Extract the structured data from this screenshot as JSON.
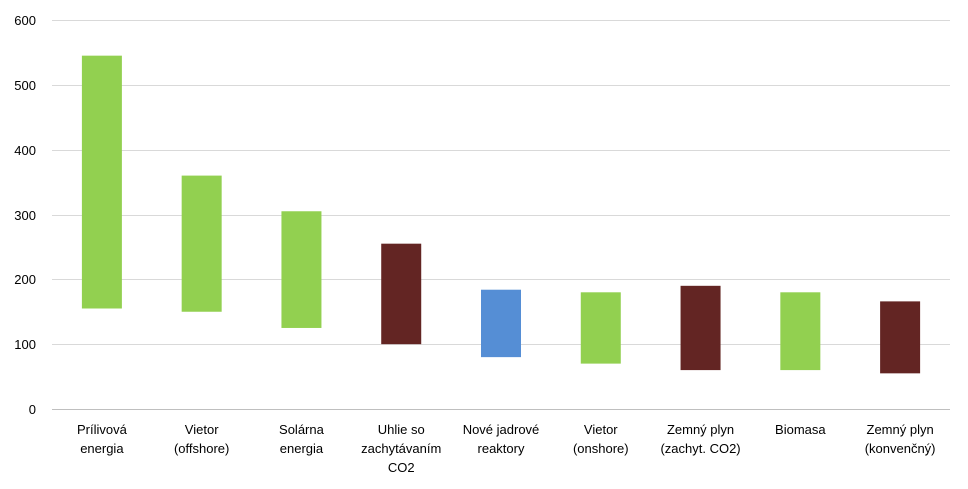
{
  "chart_data": {
    "type": "bar",
    "subtype": "floating-range",
    "title": "",
    "xlabel": "",
    "ylabel": "",
    "ylim": [
      0,
      600
    ],
    "yticks": [
      0,
      100,
      200,
      300,
      400,
      500,
      600
    ],
    "grid": true,
    "legend": "none",
    "categories": [
      [
        "Prílivová",
        "energia"
      ],
      [
        "Vietor",
        "(offshore)"
      ],
      [
        "Solárna",
        "energia"
      ],
      [
        "Uhlie so",
        "zachytávaním",
        "CO2"
      ],
      [
        "Nové jadrové",
        "reaktory"
      ],
      [
        "Vietor",
        "(onshore)"
      ],
      [
        "Zemný plyn",
        "(zachyt. CO2)"
      ],
      [
        "Biomasa"
      ],
      [
        "Zemný plyn",
        "(konvenčný)"
      ]
    ],
    "low": [
      155,
      150,
      125,
      100,
      80,
      70,
      60,
      60,
      55
    ],
    "high": [
      545,
      360,
      305,
      255,
      184,
      180,
      190,
      180,
      166
    ],
    "colors": [
      "#92d050",
      "#92d050",
      "#92d050",
      "#632523",
      "#558ed5",
      "#92d050",
      "#632523",
      "#92d050",
      "#632523"
    ]
  }
}
